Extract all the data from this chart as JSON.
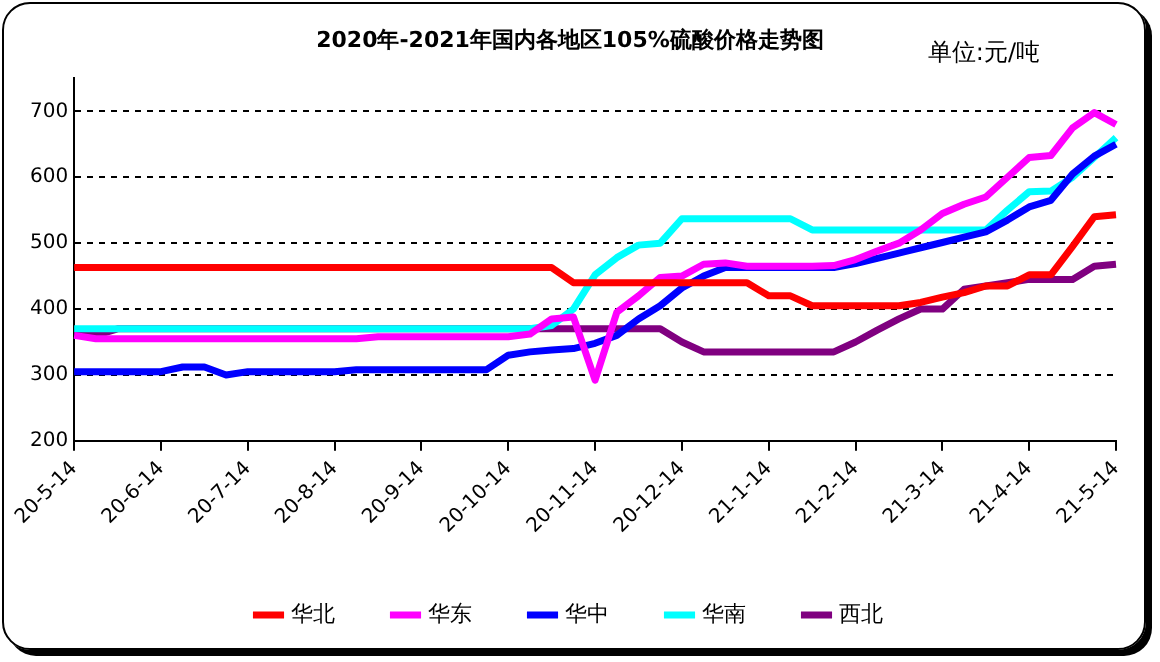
{
  "chart_data": {
    "type": "line",
    "title": "2020年-2021年国内各地区105%硫酸价格走势图",
    "annotations": [
      "单位:元/吨"
    ],
    "categories": [
      "20-5-14",
      null,
      null,
      null,
      "20-6-14",
      null,
      null,
      null,
      "20-7-14",
      null,
      null,
      null,
      "20-8-14",
      null,
      null,
      null,
      "20-9-14",
      null,
      null,
      null,
      "20-10-14",
      null,
      null,
      null,
      "20-11-14",
      null,
      null,
      null,
      "20-12-14",
      null,
      null,
      null,
      "21-1-14",
      null,
      null,
      null,
      "21-2-14",
      null,
      null,
      null,
      "21-3-14",
      null,
      null,
      null,
      "21-4-14",
      null,
      null,
      null,
      "21-5-14"
    ],
    "series": [
      {
        "name": "华北",
        "color": "#ff0000",
        "values": [
          463,
          463,
          463,
          463,
          463,
          463,
          463,
          463,
          463,
          463,
          463,
          463,
          463,
          463,
          463,
          463,
          463,
          463,
          463,
          463,
          463,
          463,
          463,
          440,
          440,
          440,
          440,
          440,
          440,
          440,
          440,
          440,
          420,
          420,
          405,
          405,
          405,
          405,
          405,
          410,
          418,
          425,
          435,
          435,
          452,
          452,
          495,
          540,
          543
        ]
      },
      {
        "name": "华东",
        "color": "#ff00ff",
        "values": [
          360,
          355,
          355,
          355,
          355,
          355,
          355,
          355,
          355,
          355,
          355,
          355,
          355,
          355,
          358,
          358,
          358,
          358,
          358,
          358,
          358,
          362,
          385,
          388,
          292,
          395,
          420,
          448,
          450,
          468,
          470,
          465,
          465,
          465,
          465,
          466,
          475,
          488,
          500,
          520,
          545,
          559,
          570,
          600,
          630,
          633,
          675,
          698,
          680
        ]
      },
      {
        "name": "华中",
        "color": "#0000ff",
        "values": [
          305,
          305,
          305,
          305,
          305,
          312,
          312,
          300,
          305,
          305,
          305,
          305,
          305,
          308,
          308,
          308,
          308,
          308,
          308,
          308,
          330,
          335,
          338,
          340,
          348,
          360,
          385,
          405,
          432,
          450,
          463,
          463,
          463,
          463,
          463,
          463,
          469,
          477,
          485,
          493,
          501,
          509,
          517,
          535,
          555,
          565,
          605,
          632,
          650
        ]
      },
      {
        "name": "华南",
        "color": "#00ffff",
        "values": [
          370,
          370,
          370,
          370,
          370,
          370,
          370,
          370,
          370,
          370,
          370,
          370,
          370,
          370,
          370,
          370,
          370,
          370,
          370,
          370,
          370,
          370,
          375,
          400,
          452,
          478,
          497,
          500,
          537,
          537,
          537,
          537,
          537,
          537,
          520,
          520,
          520,
          520,
          520,
          520,
          520,
          520,
          520,
          550,
          578,
          579,
          600,
          630,
          660
        ]
      },
      {
        "name": "西北",
        "color": "#800080",
        "values": [
          360,
          360,
          370,
          370,
          370,
          370,
          370,
          370,
          370,
          370,
          370,
          370,
          370,
          370,
          370,
          370,
          370,
          370,
          370,
          370,
          370,
          370,
          370,
          370,
          370,
          370,
          370,
          370,
          350,
          335,
          335,
          335,
          335,
          335,
          335,
          335,
          350,
          368,
          385,
          400,
          400,
          430,
          435,
          440,
          445,
          445,
          445,
          465,
          468
        ]
      }
    ],
    "ylim": [
      200,
      750
    ],
    "yticks": [
      200,
      300,
      400,
      500,
      600,
      700
    ],
    "grid": "y",
    "legend": "bottom",
    "marker": "none",
    "line_style": "solid"
  }
}
